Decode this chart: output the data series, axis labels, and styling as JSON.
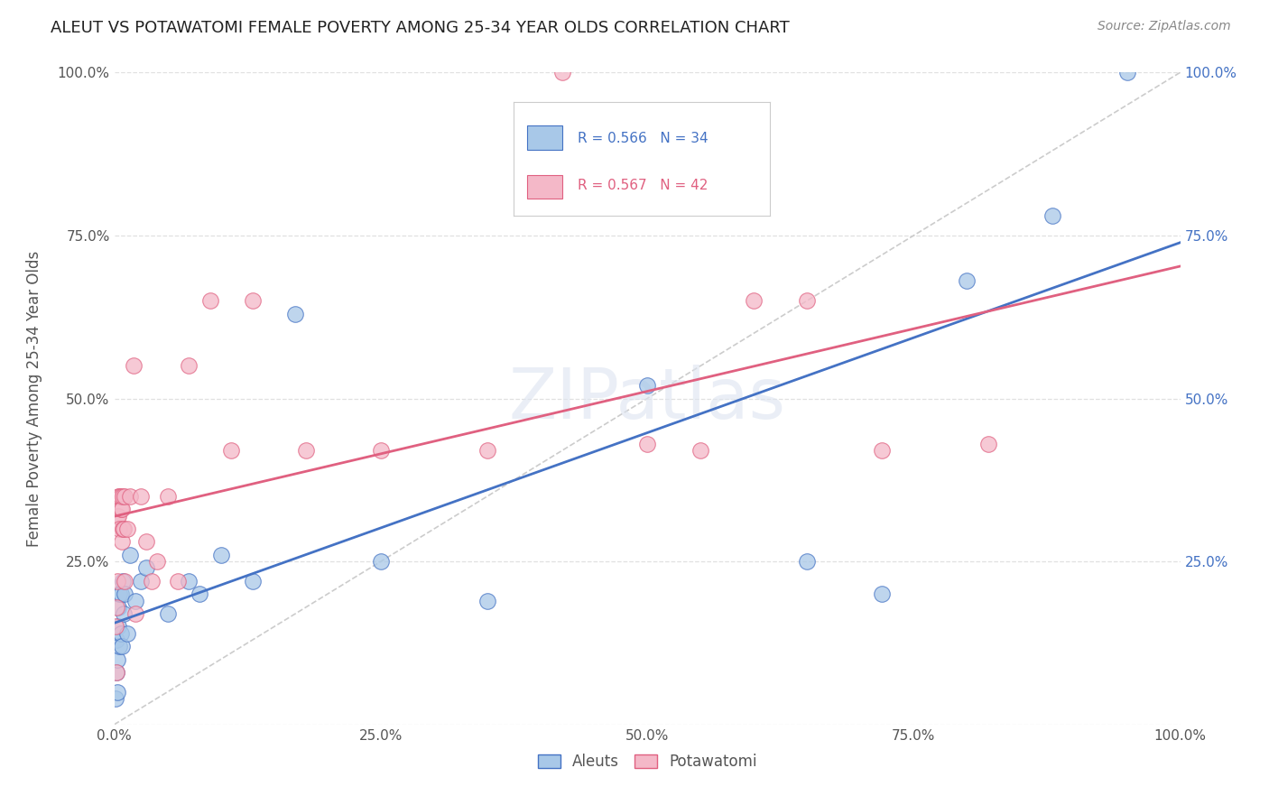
{
  "title": "ALEUT VS POTAWATOMI FEMALE POVERTY AMONG 25-34 YEAR OLDS CORRELATION CHART",
  "source": "Source: ZipAtlas.com",
  "ylabel": "Female Poverty Among 25-34 Year Olds",
  "xlim": [
    0.0,
    1.0
  ],
  "ylim": [
    0.0,
    1.0
  ],
  "aleuts_R": "0.566",
  "aleuts_N": "34",
  "potawatomi_R": "0.567",
  "potawatomi_N": "42",
  "aleut_face_color": "#a8c8e8",
  "aleut_edge_color": "#4472c4",
  "potawatomi_face_color": "#f4b8c8",
  "potawatomi_edge_color": "#e06080",
  "aleut_line_color": "#4472c4",
  "potawatomi_line_color": "#e06080",
  "diagonal_color": "#cccccc",
  "watermark": "ZIPatlas",
  "background_color": "#ffffff",
  "grid_color": "#e0e0e0",
  "aleuts_x": [
    0.001,
    0.002,
    0.002,
    0.003,
    0.003,
    0.004,
    0.004,
    0.005,
    0.005,
    0.006,
    0.006,
    0.007,
    0.008,
    0.009,
    0.01,
    0.012,
    0.015,
    0.02,
    0.025,
    0.03,
    0.05,
    0.07,
    0.08,
    0.1,
    0.13,
    0.17,
    0.25,
    0.35,
    0.5,
    0.65,
    0.72,
    0.8,
    0.88,
    0.95
  ],
  "aleuts_y": [
    0.04,
    0.08,
    0.13,
    0.05,
    0.1,
    0.15,
    0.18,
    0.12,
    0.2,
    0.14,
    0.2,
    0.12,
    0.22,
    0.17,
    0.2,
    0.14,
    0.26,
    0.19,
    0.22,
    0.24,
    0.17,
    0.22,
    0.2,
    0.26,
    0.22,
    0.63,
    0.25,
    0.19,
    0.52,
    0.25,
    0.2,
    0.68,
    0.78,
    1.0
  ],
  "potawatomi_x": [
    0.001,
    0.002,
    0.002,
    0.003,
    0.003,
    0.004,
    0.004,
    0.005,
    0.005,
    0.006,
    0.006,
    0.007,
    0.007,
    0.008,
    0.008,
    0.009,
    0.01,
    0.01,
    0.012,
    0.015,
    0.018,
    0.02,
    0.025,
    0.03,
    0.035,
    0.04,
    0.05,
    0.06,
    0.07,
    0.09,
    0.11,
    0.13,
    0.18,
    0.25,
    0.35,
    0.42,
    0.5,
    0.55,
    0.6,
    0.65,
    0.72,
    0.82
  ],
  "potawatomi_y": [
    0.15,
    0.08,
    0.18,
    0.32,
    0.22,
    0.32,
    0.35,
    0.3,
    0.35,
    0.33,
    0.35,
    0.28,
    0.33,
    0.3,
    0.35,
    0.3,
    0.22,
    0.35,
    0.3,
    0.35,
    0.55,
    0.17,
    0.35,
    0.28,
    0.22,
    0.25,
    0.35,
    0.22,
    0.55,
    0.65,
    0.42,
    0.65,
    0.42,
    0.42,
    0.42,
    1.0,
    0.43,
    0.42,
    0.65,
    0.65,
    0.42,
    0.43
  ]
}
